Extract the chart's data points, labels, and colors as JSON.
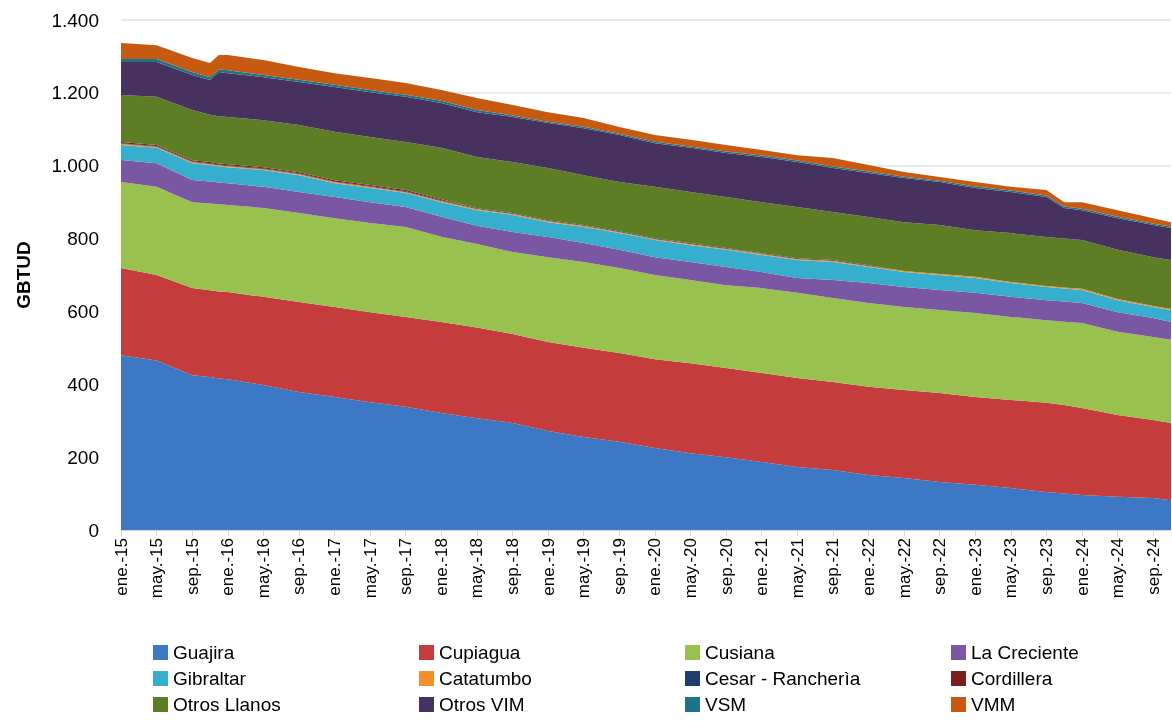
{
  "chart_data": {
    "type": "area",
    "stacked": true,
    "ylabel": "GBTUD",
    "x": [
      "2015-01",
      "2015-05",
      "2015-09",
      "2015-11",
      "2015-12",
      "2016-01",
      "2016-05",
      "2016-09",
      "2017-01",
      "2017-05",
      "2017-09",
      "2018-01",
      "2018-05",
      "2018-09",
      "2019-01",
      "2019-05",
      "2019-09",
      "2020-01",
      "2020-05",
      "2020-09",
      "2021-01",
      "2021-05",
      "2021-09",
      "2022-01",
      "2022-05",
      "2022-09",
      "2023-01",
      "2023-05",
      "2023-09",
      "2023-11",
      "2024-01",
      "2024-05",
      "2024-09",
      "2024-11"
    ],
    "series": [
      {
        "name": "Guajira",
        "color": "#3c78c4",
        "values": [
          480,
          465,
          425,
          420,
          416,
          414,
          398,
          379,
          365,
          351,
          338,
          321,
          307,
          294,
          272,
          255,
          242,
          225,
          211,
          200,
          187,
          173,
          165,
          151,
          143,
          132,
          124,
          115,
          104,
          100,
          96,
          91,
          88,
          82
        ]
      },
      {
        "name": "Cupiagua",
        "color": "#c43c3c",
        "values": [
          239,
          235,
          239,
          238,
          239,
          239,
          242,
          247,
          247,
          247,
          247,
          250,
          249,
          244,
          244,
          245,
          244,
          244,
          247,
          245,
          244,
          244,
          241,
          242,
          241,
          244,
          241,
          242,
          245,
          243,
          239,
          225,
          214,
          212
        ]
      },
      {
        "name": "Cusiana",
        "color": "#98c150",
        "values": [
          236,
          242,
          236,
          238,
          239,
          239,
          244,
          244,
          244,
          245,
          247,
          234,
          229,
          225,
          233,
          236,
          233,
          231,
          228,
          227,
          233,
          234,
          231,
          230,
          228,
          228,
          231,
          228,
          227,
          229,
          233,
          228,
          228,
          228
        ]
      },
      {
        "name": "La Creciente",
        "color": "#7a57a3",
        "values": [
          61,
          65,
          61,
          61,
          60,
          60,
          58,
          58,
          58,
          57,
          55,
          55,
          50,
          55,
          55,
          52,
          50,
          49,
          50,
          50,
          44,
          41,
          49,
          55,
          55,
          55,
          55,
          55,
          55,
          55,
          55,
          54,
          52,
          49
        ]
      },
      {
        "name": "Gibraltar",
        "color": "#36aecd",
        "values": [
          41,
          42,
          46,
          45,
          44,
          44,
          46,
          46,
          38,
          39,
          38,
          40,
          43,
          47,
          41,
          44,
          46,
          47,
          46,
          47,
          47,
          49,
          50,
          44,
          41,
          41,
          41,
          38,
          36,
          36,
          36,
          33,
          30,
          33
        ]
      },
      {
        "name": "Catatumbo",
        "color": "#f3902b",
        "values": [
          3,
          3,
          3,
          3,
          3,
          3,
          3,
          3,
          3,
          3,
          3,
          3,
          3,
          3,
          3,
          3,
          3,
          3,
          3,
          3,
          3,
          3,
          3,
          3,
          3,
          3,
          3,
          3,
          3,
          3,
          3,
          3,
          3,
          3
        ]
      },
      {
        "name": "Cesar - Rancherìa",
        "color": "#1f3e6e",
        "values": [
          2,
          2,
          2,
          2,
          2,
          2,
          2,
          2,
          2,
          2,
          2,
          2,
          2,
          2,
          2,
          2,
          2,
          2,
          2,
          2,
          2,
          2,
          2,
          2,
          0,
          0,
          0,
          0,
          0,
          0,
          0,
          0,
          0,
          0
        ]
      },
      {
        "name": "Cordillera",
        "color": "#7b1e1e",
        "values": [
          3,
          3,
          3,
          3,
          3,
          3,
          3,
          3,
          3,
          3,
          3,
          3,
          0,
          0,
          0,
          0,
          0,
          0,
          0,
          0,
          0,
          0,
          0,
          0,
          0,
          0,
          0,
          0,
          0,
          0,
          0,
          0,
          0,
          0
        ]
      },
      {
        "name": "Otros Llanos",
        "color": "#5d7e25",
        "values": [
          129,
          132,
          138,
          130,
          130,
          130,
          129,
          130,
          133,
          132,
          132,
          141,
          141,
          140,
          144,
          137,
          135,
          141,
          141,
          140,
          140,
          141,
          132,
          132,
          134,
          134,
          128,
          134,
          134,
          134,
          134,
          135,
          134,
          134
        ]
      },
      {
        "name": "Otros VIM",
        "color": "#47325f",
        "values": [
          91,
          96,
          96,
          95,
          121,
          120,
          118,
          118,
          123,
          123,
          124,
          123,
          123,
          124,
          123,
          129,
          129,
          120,
          121,
          121,
          124,
          123,
          121,
          121,
          121,
          118,
          116,
          113,
          110,
          84,
          82,
          87,
          88,
          88
        ]
      },
      {
        "name": "VSM",
        "color": "#1f7389",
        "values": [
          8,
          8,
          8,
          8,
          8,
          8,
          6,
          6,
          6,
          6,
          6,
          6,
          6,
          4,
          4,
          4,
          4,
          4,
          4,
          4,
          4,
          4,
          4,
          4,
          4,
          4,
          4,
          4,
          4,
          4,
          4,
          4,
          4,
          4
        ]
      },
      {
        "name": "VMM",
        "color": "#c65a10",
        "values": [
          44,
          38,
          39,
          39,
          39,
          42,
          41,
          35,
          32,
          33,
          32,
          30,
          33,
          29,
          26,
          24,
          18,
          18,
          18,
          18,
          15,
          15,
          23,
          18,
          13,
          10,
          12,
          10,
          15,
          12,
          18,
          18,
          15,
          12
        ]
      }
    ],
    "xlim": [
      "2015-01",
      "2024-11"
    ],
    "xticks": [
      {
        "value": "2015-01",
        "label": "ene.-15"
      },
      {
        "value": "2015-05",
        "label": "may.-15"
      },
      {
        "value": "2015-09",
        "label": "sep.-15"
      },
      {
        "value": "2016-01",
        "label": "ene.-16"
      },
      {
        "value": "2016-05",
        "label": "may.-16"
      },
      {
        "value": "2016-09",
        "label": "sep.-16"
      },
      {
        "value": "2017-01",
        "label": "ene.-17"
      },
      {
        "value": "2017-05",
        "label": "may.-17"
      },
      {
        "value": "2017-09",
        "label": "sep.-17"
      },
      {
        "value": "2018-01",
        "label": "ene.-18"
      },
      {
        "value": "2018-05",
        "label": "may.-18"
      },
      {
        "value": "2018-09",
        "label": "sep.-18"
      },
      {
        "value": "2019-01",
        "label": "ene.-19"
      },
      {
        "value": "2019-05",
        "label": "may.-19"
      },
      {
        "value": "2019-09",
        "label": "sep.-19"
      },
      {
        "value": "2020-01",
        "label": "ene.-20"
      },
      {
        "value": "2020-05",
        "label": "may.-20"
      },
      {
        "value": "2020-09",
        "label": "sep.-20"
      },
      {
        "value": "2021-01",
        "label": "ene.-21"
      },
      {
        "value": "2021-05",
        "label": "may.-21"
      },
      {
        "value": "2021-09",
        "label": "sep.-21"
      },
      {
        "value": "2022-01",
        "label": "ene.-22"
      },
      {
        "value": "2022-05",
        "label": "may.-22"
      },
      {
        "value": "2022-09",
        "label": "sep.-22"
      },
      {
        "value": "2023-01",
        "label": "ene.-23"
      },
      {
        "value": "2023-05",
        "label": "may.-23"
      },
      {
        "value": "2023-09",
        "label": "sep.-23"
      },
      {
        "value": "2024-01",
        "label": "ene.-24"
      },
      {
        "value": "2024-05",
        "label": "may.-24"
      },
      {
        "value": "2024-09",
        "label": "sep.-24"
      }
    ],
    "ylim": [
      0,
      1400
    ],
    "yticks": [
      {
        "value": 0,
        "label": "0"
      },
      {
        "value": 200,
        "label": "200"
      },
      {
        "value": 400,
        "label": "400"
      },
      {
        "value": 600,
        "label": "600"
      },
      {
        "value": 800,
        "label": "800"
      },
      {
        "value": 1000,
        "label": "1.000"
      },
      {
        "value": 1200,
        "label": "1.200"
      },
      {
        "value": 1400,
        "label": "1.400"
      }
    ],
    "grid": "y",
    "legend": "bottom"
  }
}
